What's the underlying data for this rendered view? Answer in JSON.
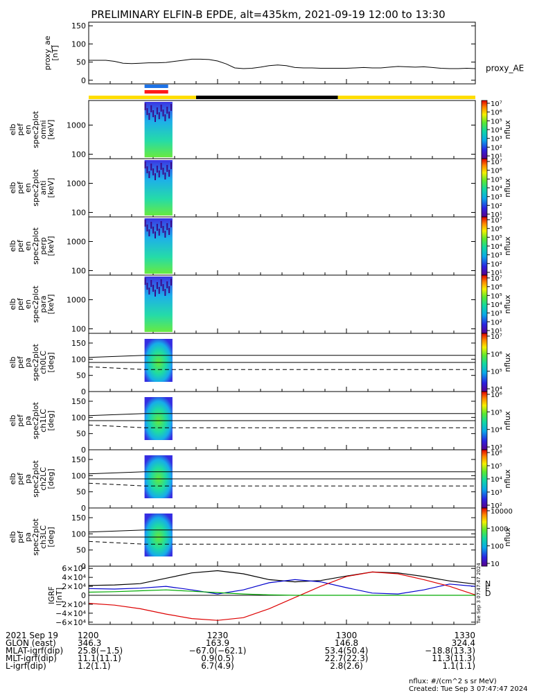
{
  "title": "PRELIMINARY ELFIN-B EPDE, alt=435km, 2021-09-19 12:00 to 13:30",
  "chart_data": [
    {
      "type": "line",
      "name": "proxy_ae",
      "ylabel": [
        "proxy_ae",
        "[nT]"
      ],
      "ylim": [
        -10,
        160
      ],
      "yticks": [
        "150",
        "100",
        "50",
        "0"
      ],
      "ytick_values": [
        150,
        100,
        50,
        0
      ],
      "legend": "proxy_AE",
      "x_minutes": [
        0,
        2,
        4,
        6,
        8,
        10,
        12,
        14,
        16,
        18,
        20,
        22,
        24,
        26,
        28,
        30,
        32,
        34,
        36,
        38,
        40,
        42,
        44,
        46,
        48,
        50,
        52,
        54,
        56,
        58,
        60,
        62,
        64,
        66,
        68,
        70,
        72,
        74,
        76,
        78,
        80,
        82,
        84,
        86,
        88,
        90
      ],
      "values": [
        55,
        55,
        55,
        52,
        47,
        46,
        47,
        48,
        48,
        49,
        52,
        55,
        58,
        58,
        57,
        53,
        45,
        34,
        32,
        33,
        36,
        40,
        42,
        40,
        35,
        34,
        34,
        33,
        33,
        33,
        33,
        34,
        35,
        34,
        34,
        36,
        38,
        37,
        36,
        37,
        35,
        33,
        32,
        32,
        33,
        32
      ]
    },
    {
      "type": "heatmap",
      "name": "elb pef en spec2plot omni",
      "ylabel": [
        "elb",
        "pef",
        "en",
        "spec2plot",
        "omni",
        "[keV]"
      ],
      "yscale": "log",
      "yticks": [
        "1000",
        "100"
      ],
      "ytick_values": [
        1000,
        100
      ],
      "colorbar": {
        "label": "nflux",
        "ticks": [
          "10⁷",
          "10⁶",
          "10⁵",
          "10⁴",
          "10³",
          "10²",
          "10¹"
        ]
      }
    },
    {
      "type": "heatmap",
      "name": "elb pef en spec2plot anti",
      "ylabel": [
        "elb",
        "pef",
        "en",
        "spec2plot",
        "anti",
        "[keV]"
      ],
      "yscale": "log",
      "yticks": [
        "1000",
        "100"
      ],
      "ytick_values": [
        1000,
        100
      ],
      "colorbar": {
        "label": "nflux",
        "ticks": [
          "10⁷",
          "10⁶",
          "10⁵",
          "10⁴",
          "10³",
          "10²",
          "10¹"
        ]
      }
    },
    {
      "type": "heatmap",
      "name": "elb pef en spec2plot perp",
      "ylabel": [
        "elb",
        "pef",
        "en",
        "spec2plot",
        "perp",
        "[keV]"
      ],
      "yscale": "log",
      "yticks": [
        "1000",
        "100"
      ],
      "ytick_values": [
        1000,
        100
      ],
      "colorbar": {
        "label": "nflux",
        "ticks": [
          "10⁷",
          "10⁶",
          "10⁵",
          "10⁴",
          "10³",
          "10²",
          "10¹"
        ]
      }
    },
    {
      "type": "heatmap",
      "name": "elb pef en spec2plot para",
      "ylabel": [
        "elb",
        "pef",
        "en",
        "spec2plot",
        "para",
        "[keV]"
      ],
      "yscale": "log",
      "yticks": [
        "1000",
        "100"
      ],
      "ytick_values": [
        1000,
        100
      ],
      "colorbar": {
        "label": "nflux",
        "ticks": [
          "10⁷",
          "10⁶",
          "10⁵",
          "10⁴",
          "10³",
          "10²",
          "10¹"
        ]
      }
    },
    {
      "type": "heatmap",
      "name": "elb pef pa spec2plot ch0LC",
      "ylabel": [
        "elb",
        "pef",
        "pa",
        "spec2plot",
        "ch0LC",
        "[deg]"
      ],
      "ylim": [
        0,
        180
      ],
      "yticks": [
        "150",
        "100",
        "50",
        "0"
      ],
      "ytick_values": [
        150,
        100,
        50,
        0
      ],
      "colorbar": {
        "label": "nflux",
        "ticks": [
          "10⁷",
          "10⁶",
          "10⁵",
          "10⁴"
        ]
      }
    },
    {
      "type": "heatmap",
      "name": "elb pef pa spec2plot ch1LC",
      "ylabel": [
        "elb",
        "pef",
        "pa",
        "spec2plot",
        "ch1LC",
        "[deg]"
      ],
      "ylim": [
        0,
        180
      ],
      "yticks": [
        "150",
        "100",
        "50",
        "0"
      ],
      "ytick_values": [
        150,
        100,
        50,
        0
      ],
      "colorbar": {
        "label": "nflux",
        "ticks": [
          "10⁶",
          "10⁵",
          "10⁴",
          "10³"
        ]
      }
    },
    {
      "type": "heatmap",
      "name": "elb pef pa spec2plot ch2LC",
      "ylabel": [
        "elb",
        "pef",
        "pa",
        "spec2plot",
        "ch2LC",
        "[deg]"
      ],
      "ylim": [
        0,
        180
      ],
      "yticks": [
        "150",
        "100",
        "50",
        "0"
      ],
      "ytick_values": [
        150,
        100,
        50,
        0
      ],
      "colorbar": {
        "label": "nflux",
        "ticks": [
          "10⁶",
          "10⁵",
          "10⁴",
          "10³",
          "10²"
        ]
      }
    },
    {
      "type": "heatmap",
      "name": "elb pef pa spec2plot ch3LC",
      "ylabel": [
        "elb",
        "pef",
        "pa",
        "spec2plot",
        "ch3LC",
        "[deg]"
      ],
      "ylim": [
        0,
        180
      ],
      "yticks": [
        "150",
        "100",
        "50",
        "0"
      ],
      "ytick_values": [
        150,
        100,
        50,
        0
      ],
      "colorbar": {
        "label": "nflux",
        "ticks": [
          "10000",
          "1000",
          "100",
          "10"
        ]
      }
    },
    {
      "type": "line",
      "name": "IGRF",
      "ylabel": [
        "IGRF",
        "[nT]"
      ],
      "ylim": [
        -65000,
        65000
      ],
      "yticks": [
        "6×10⁴",
        "4×10⁴",
        "2×10⁴",
        "0",
        "−2×10⁴",
        "−4×10⁴",
        "−6×10⁴"
      ],
      "ytick_values": [
        60000,
        40000,
        20000,
        0,
        -20000,
        -40000,
        -60000
      ],
      "legend": [
        "N",
        "E",
        "D"
      ],
      "x_minutes": [
        0,
        6,
        12,
        18,
        24,
        30,
        36,
        42,
        48,
        54,
        60,
        66,
        72,
        78,
        84,
        90
      ],
      "series": [
        {
          "name": "N",
          "color": "#000000",
          "values": [
            22000,
            23000,
            26000,
            38000,
            50000,
            55000,
            48000,
            35000,
            30000,
            33000,
            43000,
            52000,
            50000,
            42000,
            32000,
            25000
          ]
        },
        {
          "name": "E",
          "color": "#0000cc",
          "values": [
            15000,
            14000,
            16000,
            20000,
            12000,
            3000,
            12000,
            28000,
            35000,
            30000,
            17000,
            5000,
            3000,
            12000,
            25000,
            20000
          ]
        },
        {
          "name": "D",
          "color": "#dd0000",
          "values": [
            -18000,
            -22000,
            -30000,
            -42000,
            -52000,
            -56000,
            -50000,
            -30000,
            -5000,
            20000,
            42000,
            52000,
            48000,
            35000,
            20000,
            1000
          ]
        },
        {
          "color": "#00aa00",
          "values": [
            7000,
            8000,
            10000,
            12000,
            9000,
            6000,
            3000,
            1000,
            0,
            0,
            0,
            0,
            0,
            0,
            0,
            0
          ]
        }
      ]
    }
  ],
  "time_axis": {
    "rows": [
      {
        "label": "2021 Sep 19",
        "values": [
          "1200",
          "1230",
          "1300",
          "1330"
        ]
      },
      {
        "label": "GLON (east)",
        "values": [
          "346.3",
          "163.9",
          "146.8",
          "324.4"
        ]
      },
      {
        "label": "MLAT-igrf(dip)",
        "values": [
          "25.8(−1.5)",
          "−67.0(−62.1)",
          "53.4(50.4)",
          "−18.8(13.3)"
        ]
      },
      {
        "label": "MLT-igrf(dip)",
        "values": [
          "11.1(11.1)",
          "0.9(0.5)",
          "22.7(22.3)",
          "11.3(11.3)"
        ]
      },
      {
        "label": "L-igrf(dip)",
        "values": [
          "1.2(1.1)",
          "6.7(4.9)",
          "2.8(2.6)",
          "1.1(1.1)"
        ]
      }
    ]
  },
  "footer": {
    "units": "nflux: #/(cm^2 s sr MeV)",
    "created": "Created: Tue Sep  3 07:47:47 2024",
    "side_stamp": "Tue Sep  3 07:47:47 2024"
  },
  "colors": {
    "sun_bar": "#ffdd00",
    "shadow_bar": "#000000",
    "ind_blue": "#1e73e6",
    "ind_red": "#ff1a1a"
  }
}
